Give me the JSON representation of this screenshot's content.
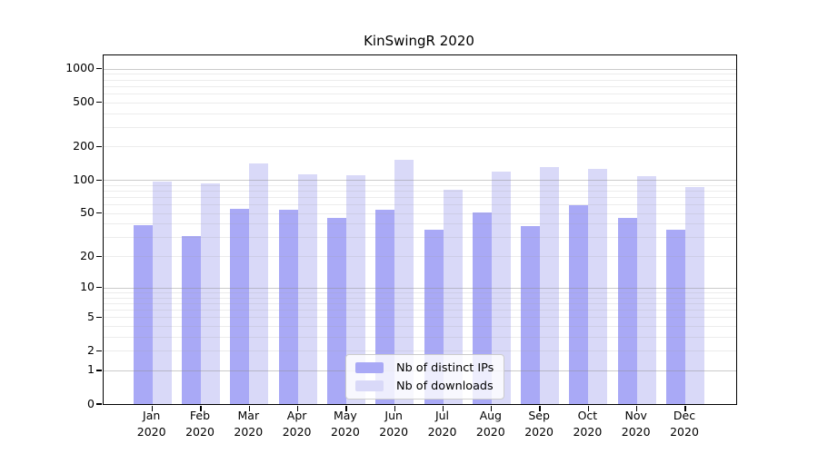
{
  "chart_data": {
    "type": "bar",
    "title": "KinSwingR 2020",
    "categories": [
      "Jan 2020",
      "Feb 2020",
      "Mar 2020",
      "Apr 2020",
      "May 2020",
      "Jun 2020",
      "Jul 2020",
      "Aug 2020",
      "Sep 2020",
      "Oct 2020",
      "Nov 2020",
      "Dec 2020"
    ],
    "series": [
      {
        "name": "Nb of distinct IPs",
        "color": "#a9a9f6",
        "values": [
          39,
          31,
          55,
          54,
          45,
          54,
          35,
          51,
          38,
          59,
          45,
          35
        ]
      },
      {
        "name": "Nb of downloads",
        "color": "#d9d9f8",
        "values": [
          97,
          94,
          140,
          113,
          110,
          153,
          82,
          120,
          131,
          125,
          109,
          87
        ]
      }
    ],
    "xlabel": "",
    "ylabel": "",
    "y_axis": {
      "scale": "log1p",
      "tick_values": [
        0,
        1,
        2,
        5,
        10,
        20,
        50,
        100,
        200,
        500,
        1000
      ],
      "ylim": [
        0,
        1000
      ]
    },
    "grid": {
      "major_color": "#c8c8c8",
      "minor_color": "#ebebeb",
      "major_at": [
        1,
        10,
        100,
        1000
      ]
    },
    "legend_position": "bottom-center",
    "axis_color": "#000000",
    "background_color": "#ffffff"
  }
}
